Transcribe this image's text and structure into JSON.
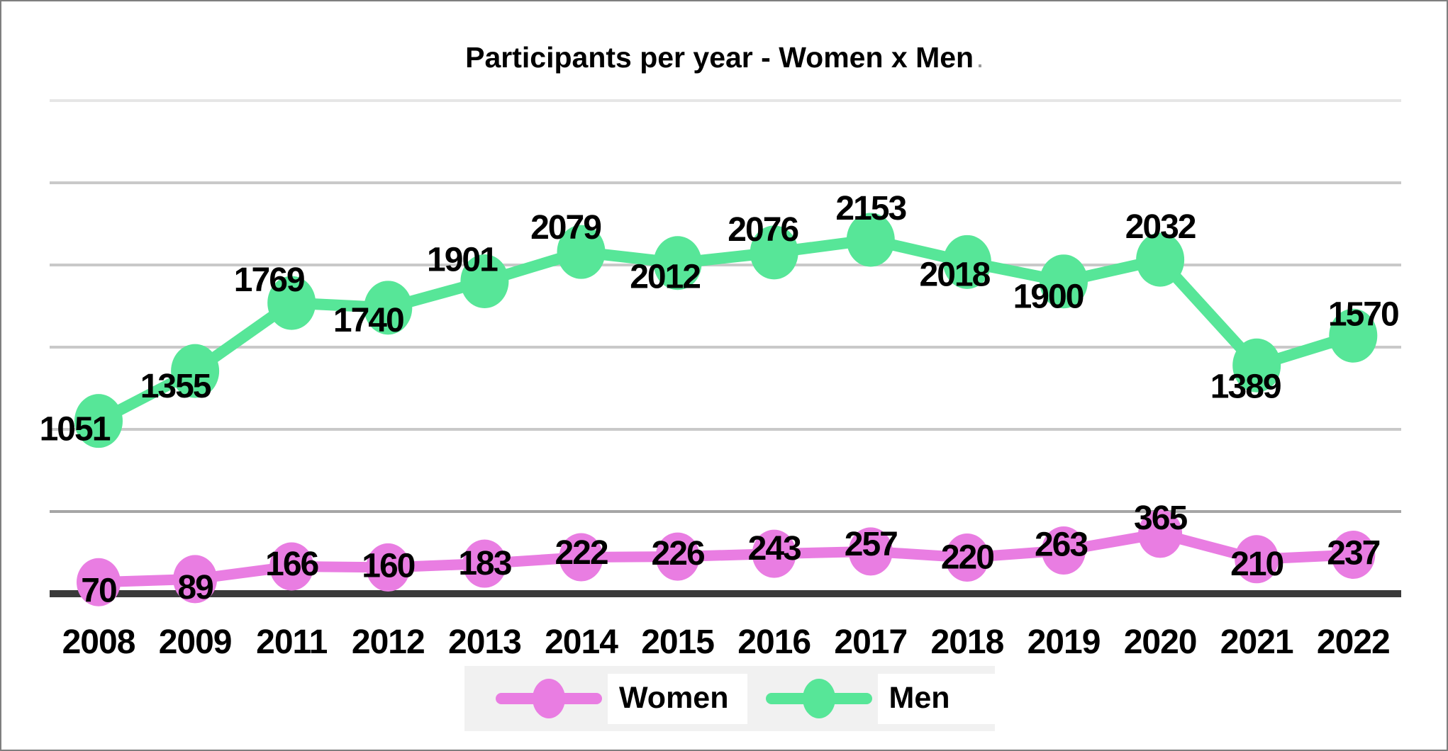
{
  "window": {
    "background": "#ffffff",
    "border_color": "#7f7f7f"
  },
  "chart_data": {
    "type": "line",
    "title": "Participants per year - Women x Men",
    "title_suffix_dot": ".",
    "categories": [
      "2008",
      "2009",
      "2011",
      "2012",
      "2013",
      "2014",
      "2015",
      "2016",
      "2017",
      "2018",
      "2019",
      "2020",
      "2021",
      "2022"
    ],
    "series": [
      {
        "name": "Women",
        "color": "#e97de2",
        "values": [
          70,
          89,
          166,
          160,
          183,
          222,
          226,
          243,
          257,
          220,
          263,
          365,
          210,
          237
        ]
      },
      {
        "name": "Men",
        "color": "#57e698",
        "values": [
          1051,
          1355,
          1769,
          1740,
          1901,
          2079,
          2012,
          2076,
          2153,
          2018,
          1900,
          2032,
          1389,
          1570
        ]
      }
    ],
    "ylim": [
      0,
      3000
    ],
    "gridline_step": 500,
    "grid": "horizontal-only",
    "y_axis_labels_visible": false,
    "legend_position": "bottom-center",
    "label_offsets": {
      "Women": [
        [
          0,
          12
        ],
        [
          0,
          12
        ],
        [
          0,
          -3
        ],
        [
          0,
          -2
        ],
        [
          0,
          0
        ],
        [
          0,
          -6
        ],
        [
          0,
          -4
        ],
        [
          0,
          -7
        ],
        [
          0,
          -10
        ],
        [
          0,
          0
        ],
        [
          -4,
          -8
        ],
        [
          0,
          -22
        ],
        [
          0,
          7
        ],
        [
          0,
          -2
        ]
      ],
      "Men": [
        [
          -34,
          12
        ],
        [
          -28,
          22
        ],
        [
          -32,
          -32
        ],
        [
          -28,
          18
        ],
        [
          -32,
          -30
        ],
        [
          -22,
          -34
        ],
        [
          -18,
          20
        ],
        [
          -16,
          -32
        ],
        [
          0,
          -44
        ],
        [
          -18,
          18
        ],
        [
          -22,
          22
        ],
        [
          0,
          -46
        ],
        [
          -16,
          30
        ],
        [
          14,
          -30
        ]
      ]
    },
    "colors": {
      "gridlines_top_to_bottom": [
        "#e6e6e6",
        "#c9c9c9",
        "#c9c9c9",
        "#c9c9c9",
        "#c9c9c9",
        "#a6a6a6"
      ],
      "axis_line": "#3a3a3a",
      "label_text": "#000000",
      "legend_bg": "#f1f1f1",
      "legend_item_bg": "#ffffff"
    }
  }
}
